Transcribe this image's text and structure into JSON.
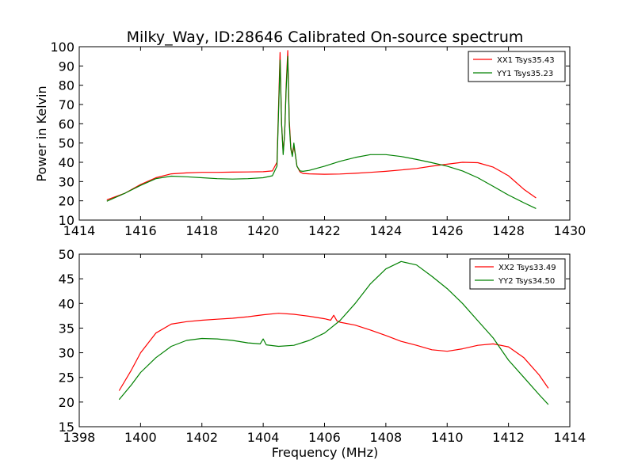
{
  "figure": {
    "title": "Milky_Way, ID:28646 Calibrated On-source spectrum",
    "xlabel": "Frequency (MHz)"
  },
  "colors": {
    "red": "#ff0000",
    "green": "#008000",
    "axis": "#000000",
    "background": "#ffffff"
  },
  "chart_data": [
    {
      "type": "line",
      "title": "Milky_Way, ID:28646 Calibrated On-source spectrum",
      "xlabel": "",
      "ylabel": "Power in Kelvin",
      "xlim": [
        1414,
        1430
      ],
      "ylim": [
        10,
        100
      ],
      "xticks": [
        "1414",
        "1416",
        "1418",
        "1420",
        "1422",
        "1424",
        "1426",
        "1428",
        "1430"
      ],
      "yticks": [
        "10",
        "20",
        "30",
        "40",
        "50",
        "60",
        "70",
        "80",
        "90",
        "100"
      ],
      "legend_position": "top-right",
      "grid": false,
      "series": [
        {
          "name": "XX1 Tsys35.43",
          "color": "#ff0000",
          "x": [
            1414.9,
            1415.5,
            1416.0,
            1416.5,
            1417.0,
            1417.5,
            1418.0,
            1418.5,
            1419.0,
            1419.5,
            1420.0,
            1420.3,
            1420.45,
            1420.55,
            1420.6,
            1420.65,
            1420.7,
            1420.75,
            1420.8,
            1420.85,
            1420.9,
            1420.95,
            1421.0,
            1421.05,
            1421.1,
            1421.2,
            1421.3,
            1421.5,
            1422.0,
            1422.5,
            1423.0,
            1423.5,
            1424.0,
            1424.5,
            1425.0,
            1425.5,
            1426.0,
            1426.5,
            1427.0,
            1427.5,
            1428.0,
            1428.5,
            1428.9
          ],
          "y": [
            20.5,
            24.0,
            28.5,
            32.0,
            34.0,
            34.5,
            34.8,
            34.8,
            34.9,
            35.0,
            35.1,
            35.5,
            40.0,
            97.0,
            60.0,
            45.0,
            55.0,
            80.0,
            98.0,
            62.0,
            48.0,
            44.0,
            48.0,
            44.0,
            38.0,
            35.0,
            34.2,
            34.0,
            33.8,
            33.9,
            34.3,
            34.8,
            35.3,
            36.0,
            36.8,
            38.0,
            39.0,
            40.0,
            39.8,
            37.5,
            33.0,
            26.0,
            21.5
          ]
        },
        {
          "name": "YY1 Tsys35.23",
          "color": "#008000",
          "x": [
            1414.9,
            1415.5,
            1416.0,
            1416.5,
            1417.0,
            1417.5,
            1418.0,
            1418.5,
            1419.0,
            1419.5,
            1420.0,
            1420.3,
            1420.45,
            1420.55,
            1420.6,
            1420.65,
            1420.7,
            1420.75,
            1420.8,
            1420.85,
            1420.9,
            1420.95,
            1421.0,
            1421.05,
            1421.1,
            1421.2,
            1421.3,
            1421.5,
            1422.0,
            1422.5,
            1423.0,
            1423.5,
            1424.0,
            1424.5,
            1425.0,
            1425.5,
            1426.0,
            1426.5,
            1427.0,
            1427.5,
            1428.0,
            1428.5,
            1428.9
          ],
          "y": [
            19.8,
            24.0,
            28.0,
            31.5,
            32.8,
            32.5,
            32.0,
            31.5,
            31.3,
            31.5,
            32.0,
            33.0,
            38.0,
            93.0,
            60.0,
            44.0,
            55.0,
            78.0,
            95.0,
            60.0,
            47.0,
            43.0,
            50.0,
            44.0,
            38.0,
            35.5,
            35.3,
            35.8,
            38.0,
            40.5,
            42.5,
            44.0,
            44.0,
            43.0,
            41.5,
            39.8,
            38.0,
            35.5,
            32.0,
            27.5,
            23.0,
            19.0,
            16.0
          ]
        }
      ]
    },
    {
      "type": "line",
      "title": "",
      "xlabel": "Frequency (MHz)",
      "ylabel": "",
      "xlim": [
        1398,
        1414
      ],
      "ylim": [
        15,
        50
      ],
      "xticks": [
        "1398",
        "1400",
        "1402",
        "1404",
        "1406",
        "1408",
        "1410",
        "1412",
        "1414"
      ],
      "yticks": [
        "15",
        "20",
        "25",
        "30",
        "35",
        "40",
        "45",
        "50"
      ],
      "legend_position": "top-right",
      "grid": false,
      "series": [
        {
          "name": "XX2 Tsys33.49",
          "color": "#ff0000",
          "x": [
            1399.3,
            1399.7,
            1400.0,
            1400.5,
            1401.0,
            1401.5,
            1402.0,
            1402.5,
            1403.0,
            1403.5,
            1404.0,
            1404.5,
            1405.0,
            1405.5,
            1406.0,
            1406.2,
            1406.3,
            1406.4,
            1406.5,
            1407.0,
            1407.5,
            1408.0,
            1408.5,
            1409.0,
            1409.5,
            1410.0,
            1410.5,
            1411.0,
            1411.5,
            1412.0,
            1412.5,
            1413.0,
            1413.3
          ],
          "y": [
            22.3,
            26.5,
            30.0,
            34.0,
            35.8,
            36.3,
            36.6,
            36.8,
            37.0,
            37.3,
            37.7,
            38.0,
            37.8,
            37.4,
            36.9,
            36.6,
            37.6,
            36.5,
            36.2,
            35.6,
            34.6,
            33.5,
            32.3,
            31.5,
            30.6,
            30.3,
            30.8,
            31.5,
            31.8,
            31.2,
            29.0,
            25.5,
            22.8
          ]
        },
        {
          "name": "YY2 Tsys34.50",
          "color": "#008000",
          "x": [
            1399.3,
            1399.7,
            1400.0,
            1400.5,
            1401.0,
            1401.5,
            1402.0,
            1402.5,
            1403.0,
            1403.5,
            1403.9,
            1404.0,
            1404.1,
            1404.5,
            1405.0,
            1405.5,
            1406.0,
            1406.5,
            1407.0,
            1407.5,
            1408.0,
            1408.5,
            1409.0,
            1409.5,
            1410.0,
            1410.5,
            1411.0,
            1411.5,
            1412.0,
            1412.5,
            1413.0,
            1413.3
          ],
          "y": [
            20.5,
            23.5,
            26.0,
            29.0,
            31.3,
            32.5,
            32.9,
            32.8,
            32.5,
            32.0,
            31.8,
            32.8,
            31.6,
            31.3,
            31.5,
            32.5,
            34.0,
            36.5,
            40.0,
            44.0,
            47.0,
            48.5,
            47.8,
            45.5,
            43.0,
            40.0,
            36.5,
            33.0,
            28.5,
            25.0,
            21.5,
            19.5
          ]
        }
      ]
    }
  ]
}
